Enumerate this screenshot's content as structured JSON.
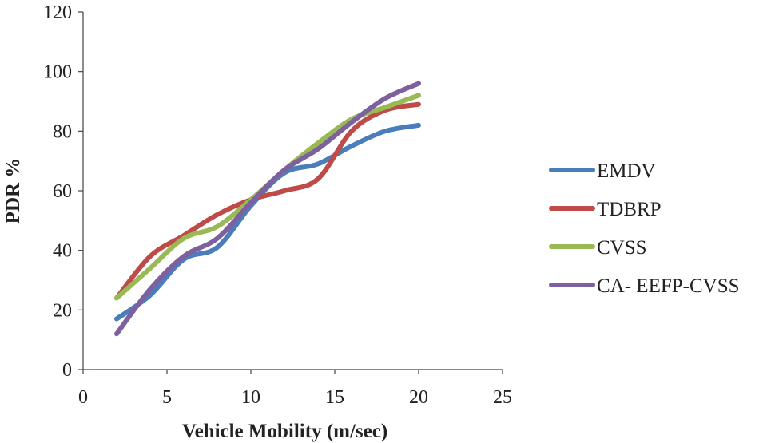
{
  "chart_data": {
    "type": "line",
    "title": "",
    "xlabel": "Vehicle Mobility (m/sec)",
    "ylabel": "PDR %",
    "xlim": [
      0,
      25
    ],
    "ylim": [
      0,
      120
    ],
    "xticks": [
      0,
      5,
      10,
      15,
      20,
      25
    ],
    "yticks": [
      0,
      20,
      40,
      60,
      80,
      100,
      120
    ],
    "grid": false,
    "legend_position": "right",
    "x": [
      2,
      4,
      6,
      8,
      10,
      12,
      14,
      16,
      18,
      20
    ],
    "series": [
      {
        "name": "EMDV",
        "color": "#4a7ebb",
        "values": [
          17,
          25,
          37,
          41,
          55,
          66,
          69,
          75,
          80,
          82
        ]
      },
      {
        "name": "TDBRP",
        "color": "#be4b48",
        "values": [
          24,
          38,
          45,
          52,
          57,
          60,
          64,
          80,
          87,
          89
        ]
      },
      {
        "name": "CVSS",
        "color": "#98b954",
        "values": [
          24,
          34,
          44,
          48,
          57,
          67,
          76,
          84,
          88,
          92
        ]
      },
      {
        "name": "CA- EEFP-CVSS",
        "color": "#7d60a0",
        "values": [
          12,
          27,
          38,
          44,
          56,
          67,
          74,
          83,
          91,
          96
        ]
      }
    ]
  }
}
